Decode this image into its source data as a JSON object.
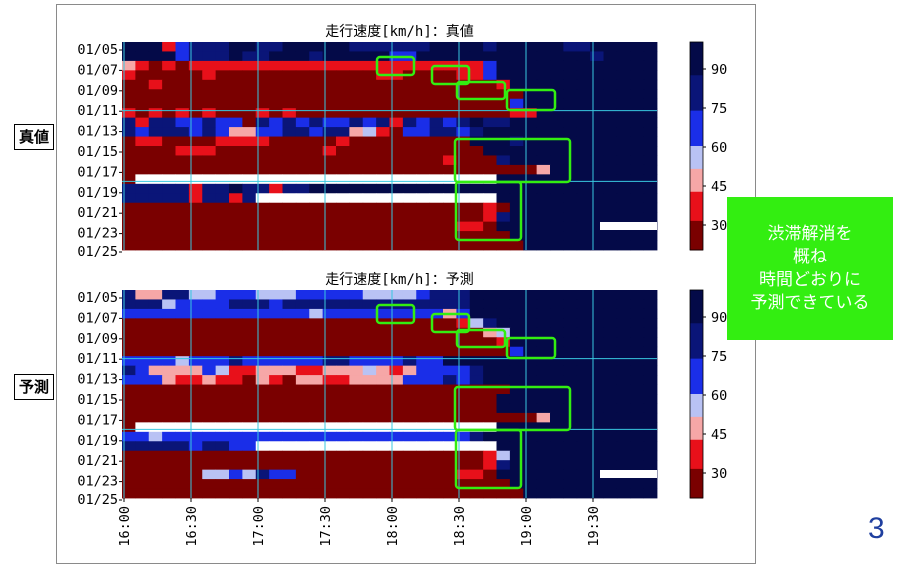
{
  "note": {
    "lines": [
      "渋滞解消を",
      "概ね",
      "時間どおりに",
      "予測できている"
    ]
  },
  "labels": {
    "true_side": "真値",
    "pred_side": "予測"
  },
  "page_number": "3",
  "chart_data": [
    {
      "type": "heatmap",
      "title": "走行速度[km/h]：真値",
      "x_ticks": [
        "16:00",
        "16:30",
        "17:00",
        "17:30",
        "18:00",
        "18:30",
        "19:00",
        "19:30"
      ],
      "y_ticks": [
        "01/05",
        "01/07",
        "01/09",
        "01/11",
        "01/13",
        "01/15",
        "01/17",
        "01/19",
        "01/21",
        "01/23",
        "01/25"
      ],
      "colorbar": {
        "ticks": [
          "90",
          "75",
          "60",
          "45",
          "30"
        ]
      },
      "color_scale": [
        "#7a0000",
        "#e8101a",
        "#f6a7a7",
        "#b9c2f4",
        "#1a2ee8",
        "#0a1578",
        "#040a48"
      ],
      "rows": [
        "6661455566556666655555566665666665566666",
        "6666455565566656666644666666666666656666",
        "2101011111111111111111111114666666666666",
        "1000001000000000000110000114666666666666",
        "0010000000000000000000000000166666666666",
        "0000000000000000000000000000006666666666",
        "0000000000000000000000000000046666666666",
        "1010101000101000000000000000011666666666",
        "5155445440545454454515454565566666666666",
        "5455545422445545523104455456666666666666",
        "0110000111100000100000000066656666666666",
        "0000111000000001000000000006666666666666",
        "0000000000000000000000001000566666666666",
        "0000000000000000000000000000000266666666",
        "0XXXXXXXXXXXXXXXXXXXXXXXXXXX666666666666",
        "5555515565515566666666666666666666666666",
        "5555515515XXXXXXXXXXXXXXXXXX666666666666",
        "0000000000000000000000000001066666666666",
        "0000000000000000000000000001566666666666",
        "0000000000000000000000000110666666666666",
        "0000000000000000000000000000066666666666",
        "0000000000000000000000000000006666666666"
      ]
    },
    {
      "type": "heatmap",
      "title": "走行速度[km/h]：予測",
      "x_ticks": [
        "16:00",
        "16:30",
        "17:00",
        "17:30",
        "18:00",
        "18:30",
        "19:00",
        "19:30"
      ],
      "y_ticks": [
        "01/05",
        "01/07",
        "01/09",
        "01/11",
        "01/13",
        "01/15",
        "01/17",
        "01/19",
        "01/21",
        "01/23",
        "01/25"
      ],
      "colorbar": {
        "ticks": [
          "90",
          "75",
          "60",
          "45",
          "30"
        ]
      },
      "color_scale": [
        "#7a0000",
        "#e8101a",
        "#f6a7a7",
        "#b9c2f4",
        "#1a2ee8",
        "#0a1578",
        "#040a48"
      ],
      "rows": [
        "5225533444333444443333455566666666666666",
        "5553444455545555555555555566666666666666",
        "4444444444444434444444442466666666666666",
        "0000000000000000000000000135666666666666",
        "0000000000000000000000000002366666666666",
        "0000000000000000000000000000166666666666",
        "0000000000000000000000000000046666666666",
        "4444344454444445544445446666666666666666",
        "5422224311222112223212444456666666666666",
        "4442112110210221122224445456666666666666",
        "0000000000000000000000000000066666666666",
        "0000000000000000000000000000666666666666",
        "0000000000000000000000000000666666666666",
        "0000000000000000000000000000000266666666",
        "0XXXXXXXXXXXXXXXXXXXXXXXXXXX666666666666",
        "4434444444444444444444444456666666666666",
        "5555545544XXXXXXXXXXXXXXXXXX666666666666",
        "0000000000000000000000000001366666666666",
        "0000000000000000000000000001566666666666",
        "0000003343544000000000000110666666666666",
        "0000000000000000000000000000066666666666",
        "0000000000000000000000000000006666666666"
      ]
    }
  ]
}
